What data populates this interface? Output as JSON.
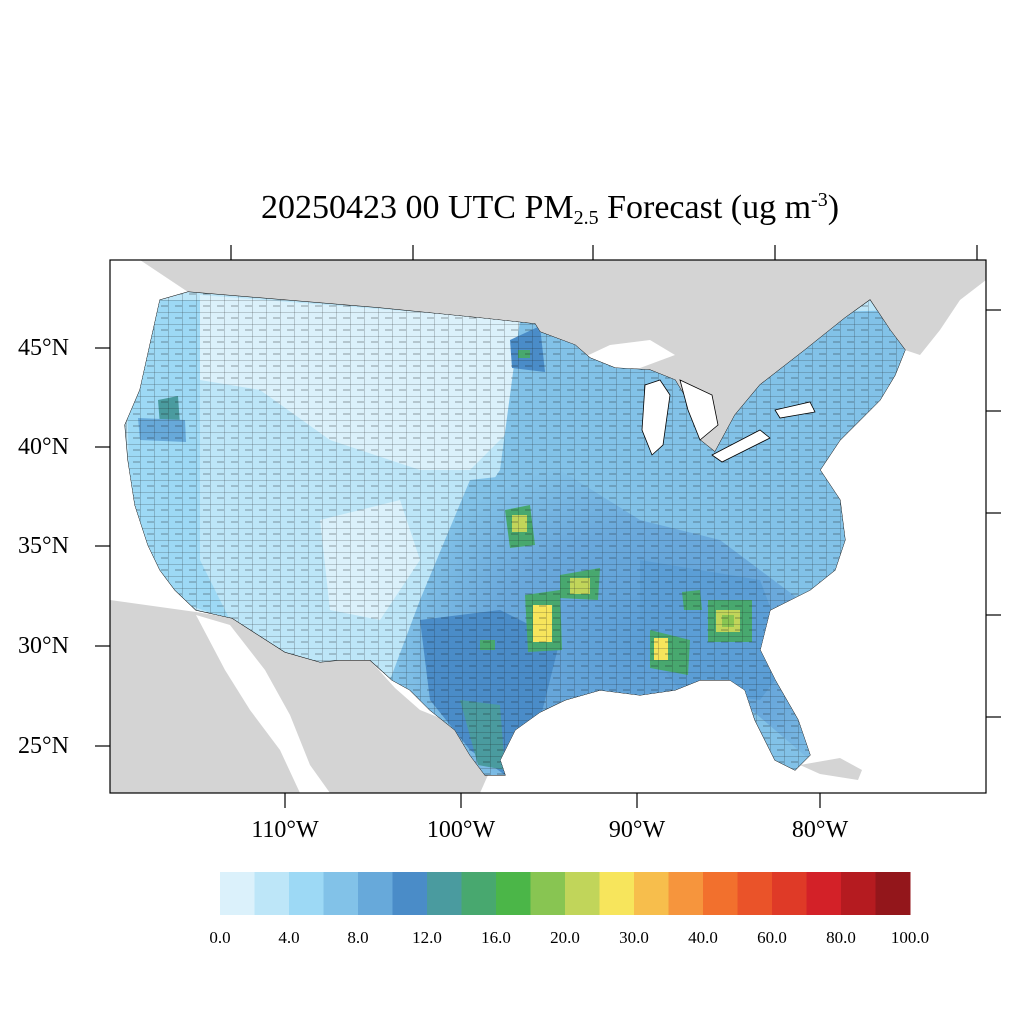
{
  "title": {
    "prefix": "20250423 00 UTC PM",
    "subscript": "2.5",
    "suffix": " Forecast (ug m",
    "superscript": "-3",
    "close": ")"
  },
  "axes": {
    "lat_labels": [
      "45°N",
      "40°N",
      "35°N",
      "30°N",
      "25°N"
    ],
    "lon_labels": [
      "110°W",
      "100°W",
      "90°W",
      "80°W"
    ]
  },
  "colorbar": {
    "colors": [
      "#dbf1fb",
      "#bde6f8",
      "#9dd9f5",
      "#82c2e8",
      "#67a9da",
      "#4a8cc8",
      "#4a9b9f",
      "#48a86f",
      "#4bb648",
      "#88c552",
      "#c1d55a",
      "#f7e55c",
      "#f7be4c",
      "#f6953d",
      "#f2702d",
      "#ea5329",
      "#df3a27",
      "#d32128",
      "#b51b20",
      "#93161b"
    ],
    "labels": [
      "0.0",
      "4.0",
      "8.0",
      "12.0",
      "16.0",
      "20.0",
      "30.0",
      "40.0",
      "60.0",
      "80.0",
      "100.0"
    ]
  },
  "map_colors": {
    "land_outside": "#d4d4d4",
    "water": "#ffffff",
    "low": "#dbf1fb",
    "mid_low": "#bde6f8",
    "mid": "#9dd9f5",
    "mid_high": "#82c2e8",
    "high": "#67a9da",
    "hotspot_green": "#4bb648",
    "hotspot_yellow": "#f7e55c"
  }
}
